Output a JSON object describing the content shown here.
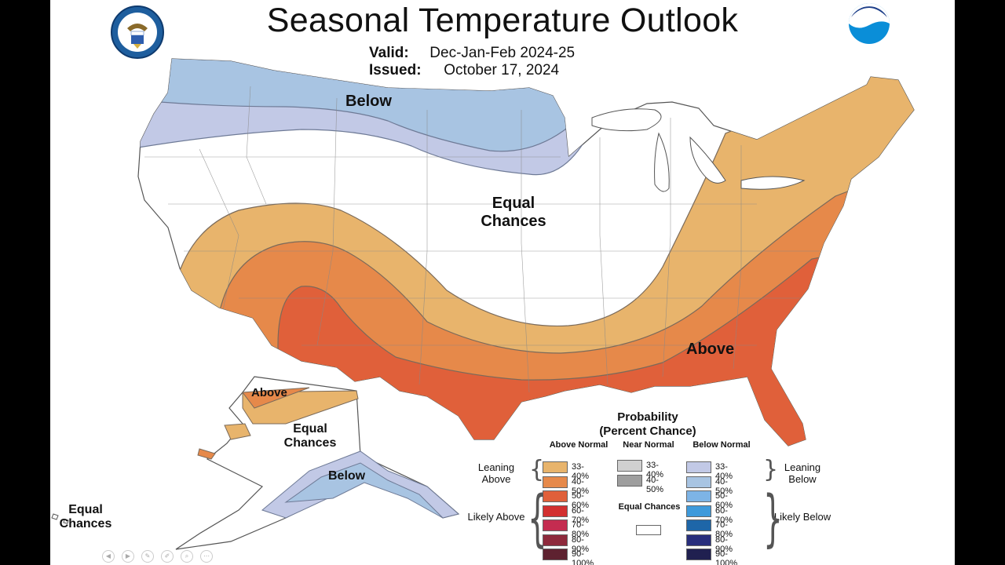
{
  "header": {
    "title": "Seasonal Temperature Outlook",
    "valid_label": "Valid:",
    "valid_value": "Dec-Jan-Feb 2024-25",
    "issued_label": "Issued:",
    "issued_value": "October 17, 2024"
  },
  "logos": {
    "left": "doc-seal-icon",
    "right": "noaa-logo-icon",
    "noaa_text": "NOAA"
  },
  "map": {
    "regions_us": [
      {
        "category": "below",
        "probability": "40-50%"
      },
      {
        "category": "below",
        "probability": "33-40%"
      },
      {
        "category": "equal_chances"
      },
      {
        "category": "above",
        "probability": "33-40%"
      },
      {
        "category": "above",
        "probability": "40-50%"
      },
      {
        "category": "above",
        "probability": "50-60%"
      }
    ],
    "labels": {
      "below_north": "Below",
      "equal_center": "Equal Chances",
      "above_south": "Above",
      "ak_above": "Above",
      "ak_equal": "Equal Chances",
      "ak_below": "Below",
      "hi_equal": "Equal Chances"
    }
  },
  "legend": {
    "title": "Probability",
    "subtitle": "(Percent Chance)",
    "col_above": "Above Normal",
    "col_near": "Near Normal",
    "col_below": "Below Normal",
    "leaning_above": "Leaning Above",
    "likely_above": "Likely Above",
    "leaning_below": "Leaning Below",
    "likely_below": "Likely Below",
    "equal_chances": "Equal Chances",
    "above": [
      {
        "range": "33-40%",
        "color": "#E8B46C"
      },
      {
        "range": "40-50%",
        "color": "#E6894A"
      },
      {
        "range": "50-60%",
        "color": "#E0603A"
      },
      {
        "range": "60-70%",
        "color": "#D23030"
      },
      {
        "range": "70-80%",
        "color": "#C42C50"
      },
      {
        "range": "80-90%",
        "color": "#8E2A3C"
      },
      {
        "range": "90-100%",
        "color": "#5E2230"
      }
    ],
    "near": [
      {
        "range": "33-40%",
        "color": "#D0D0D0"
      },
      {
        "range": "40-50%",
        "color": "#9E9E9E"
      }
    ],
    "below": [
      {
        "range": "33-40%",
        "color": "#C2C9E6"
      },
      {
        "range": "40-50%",
        "color": "#A8C4E2"
      },
      {
        "range": "50-60%",
        "color": "#7DB4E6"
      },
      {
        "range": "60-70%",
        "color": "#3E9ADB"
      },
      {
        "range": "70-80%",
        "color": "#1E66A8"
      },
      {
        "range": "80-90%",
        "color": "#282E7C"
      },
      {
        "range": "90-100%",
        "color": "#202050"
      }
    ],
    "equal_color": "#FFFFFF"
  },
  "player_controls": [
    "rewind-icon",
    "play-icon",
    "edit-icon",
    "pen-icon",
    "search-icon",
    "more-icon"
  ]
}
